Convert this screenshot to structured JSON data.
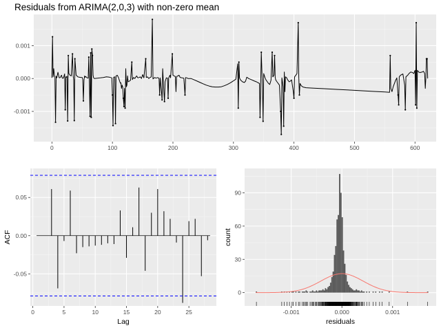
{
  "chart_data": [
    {
      "type": "line",
      "title": "Residuals from ARIMA(2,0,3) with non-zero mean",
      "xlabel": "",
      "ylabel": "",
      "xlim": [
        -30,
        635
      ],
      "ylim": [
        -0.00192,
        0.00195
      ],
      "x_ticks": [
        0,
        100,
        200,
        300,
        400,
        500,
        600
      ],
      "y_ticks": [
        -0.001,
        0.0,
        0.001
      ],
      "y_tick_labels": [
        "-0.001",
        "0.000",
        "0.001"
      ],
      "grid": true,
      "points": [
        [
          0,
          2e-05
        ],
        [
          1,
          0.00127
        ],
        [
          2,
          5e-05
        ],
        [
          3,
          0.0003
        ],
        [
          4,
          0.0001
        ],
        [
          5,
          5e-05
        ],
        [
          6,
          -0.00133
        ],
        [
          7,
          7e-05
        ],
        [
          8,
          2e-05
        ],
        [
          10,
          0.00019
        ],
        [
          12,
          2e-05
        ],
        [
          14,
          3e-05
        ],
        [
          15,
          8e-05
        ],
        [
          16,
          0.0001
        ],
        [
          17,
          1e-05
        ],
        [
          19,
          1e-05
        ],
        [
          21,
          0.00014
        ],
        [
          22,
          -0.00095
        ],
        [
          23,
          5e-05
        ],
        [
          24,
          4e-05
        ],
        [
          25,
          7e-05
        ],
        [
          26,
          -0.00129
        ],
        [
          27,
          0.0007
        ],
        [
          28,
          0.00015
        ],
        [
          30,
          0.0001
        ],
        [
          32,
          8e-05
        ],
        [
          34,
          0.00075
        ],
        [
          35,
          0.0001
        ],
        [
          36,
          -5e-05
        ],
        [
          37,
          -0.00128
        ],
        [
          38,
          0.0006
        ],
        [
          40,
          0.0001
        ],
        [
          43,
          5e-05
        ],
        [
          45,
          4e-05
        ],
        [
          48,
          3e-05
        ],
        [
          50,
          3e-05
        ],
        [
          51,
          -2e-05
        ],
        [
          52,
          -0.00068
        ],
        [
          53,
          -5e-05
        ],
        [
          54,
          8e-05
        ],
        [
          55,
          4e-05
        ],
        [
          56,
          6e-05
        ],
        [
          58,
          2e-05
        ],
        [
          60,
          1e-05
        ],
        [
          61,
          0.00065
        ],
        [
          62,
          -0.00022
        ],
        [
          63,
          -0.00115
        ],
        [
          64,
          0.00078
        ],
        [
          65,
          -0.00118
        ],
        [
          66,
          0.0009
        ],
        [
          67,
          0.0007
        ],
        [
          68,
          0.0001
        ],
        [
          69,
          2e-05
        ],
        [
          70,
          0.0
        ],
        [
          75,
          1e-05
        ],
        [
          80,
          2e-05
        ],
        [
          85,
          3e-05
        ],
        [
          90,
          5e-05
        ],
        [
          95,
          4e-05
        ],
        [
          99,
          2e-05
        ],
        [
          100,
          -0.0005
        ],
        [
          101,
          -0.00143
        ],
        [
          102,
          4e-05
        ],
        [
          104,
          5e-05
        ],
        [
          105,
          -0.00137
        ],
        [
          106,
          8e-05
        ],
        [
          108,
          0.0001
        ],
        [
          110,
          3e-05
        ],
        [
          113,
          -0.00014
        ],
        [
          114,
          -0.00013
        ],
        [
          115,
          -0.0003
        ],
        [
          116,
          -0.0002
        ],
        [
          117,
          -0.00026
        ],
        [
          118,
          -0.0006
        ],
        [
          119,
          -0.00085
        ],
        [
          120,
          -0.0003
        ],
        [
          121,
          -0.0009
        ],
        [
          122,
          0.0003
        ],
        [
          123,
          -0.00025
        ],
        [
          124,
          -0.0002
        ],
        [
          125,
          8e-05
        ],
        [
          126,
          -0.0001
        ],
        [
          128,
          -8e-05
        ],
        [
          130,
          -5e-05
        ],
        [
          132,
          0.0005
        ],
        [
          133,
          -3e-05
        ],
        [
          135,
          3e-05
        ],
        [
          137,
          0.0
        ],
        [
          140,
          8e-05
        ],
        [
          142,
          2e-05
        ],
        [
          144,
          3e-05
        ],
        [
          146,
          5e-05
        ],
        [
          148,
          0.0
        ],
        [
          150,
          0.00012
        ],
        [
          152,
          2e-05
        ],
        [
          155,
          0.0006
        ],
        [
          156,
          3e-05
        ],
        [
          158,
          5e-05
        ],
        [
          160,
          0.0
        ],
        [
          162,
          3e-05
        ],
        [
          164,
          5e-05
        ],
        [
          166,
          0.0018
        ],
        [
          167,
          -1e-05
        ],
        [
          169,
          2e-05
        ],
        [
          170,
          3e-05
        ],
        [
          172,
          1e-05
        ],
        [
          175,
          3e-05
        ],
        [
          177,
          0.0
        ],
        [
          178,
          -0.0005
        ],
        [
          179,
          2e-05
        ],
        [
          180,
          -0.0002
        ],
        [
          181,
          -0.0004
        ],
        [
          182,
          -0.00065
        ],
        [
          183,
          0.0003
        ],
        [
          185,
          -0.0004
        ],
        [
          186,
          -0.0007
        ],
        [
          187,
          -0.0001
        ],
        [
          189,
          2e-05
        ],
        [
          191,
          1e-05
        ],
        [
          192,
          -0.0006
        ],
        [
          193,
          2e-05
        ],
        [
          195,
          0.0001
        ],
        [
          196,
          2e-05
        ],
        [
          199,
          0.00075
        ],
        [
          200,
          0.0001
        ],
        [
          202,
          8e-05
        ],
        [
          204,
          6e-05
        ],
        [
          205,
          -0.0004
        ],
        [
          206,
          6e-05
        ],
        [
          208,
          8e-05
        ],
        [
          210,
          0.0001
        ],
        [
          212,
          3e-05
        ],
        [
          215,
          2e-05
        ],
        [
          218,
          1e-05
        ],
        [
          220,
          -0.0005
        ],
        [
          221,
          3e-05
        ],
        [
          223,
          2e-05
        ],
        [
          225,
          0.0
        ],
        [
          230,
          0.0
        ],
        [
          235,
          -4e-05
        ],
        [
          240,
          -8e-05
        ],
        [
          245,
          -0.00012
        ],
        [
          250,
          -0.00016
        ],
        [
          255,
          -0.0002
        ],
        [
          260,
          -0.00023
        ],
        [
          265,
          -0.00025
        ],
        [
          270,
          -0.00026
        ],
        [
          275,
          -0.00026
        ],
        [
          280,
          -0.00025
        ],
        [
          285,
          -0.00022
        ],
        [
          290,
          -0.00018
        ],
        [
          295,
          -0.00013
        ],
        [
          300,
          -7e-05
        ],
        [
          304,
          -2e-05
        ],
        [
          307,
          0.00045
        ],
        [
          308,
          -0.0009
        ],
        [
          309,
          0.0005
        ],
        [
          310,
          2e-05
        ],
        [
          312,
          -5e-05
        ],
        [
          315,
          -0.0001
        ],
        [
          318,
          -0.00012
        ],
        [
          320,
          -8e-05
        ],
        [
          322,
          4e-05
        ],
        [
          325,
          0.0
        ],
        [
          330,
          -4e-05
        ],
        [
          335,
          -8e-05
        ],
        [
          338,
          -0.0001
        ],
        [
          340,
          -0.00012
        ],
        [
          343,
          -0.00015
        ],
        [
          344,
          -0.00118
        ],
        [
          345,
          -0.0002
        ],
        [
          346,
          0.0008
        ],
        [
          347,
          0.0002
        ],
        [
          348,
          -0.0003
        ],
        [
          349,
          -0.0013
        ],
        [
          350,
          0.00015
        ],
        [
          352,
          3e-05
        ],
        [
          354,
          -5e-05
        ],
        [
          356,
          -0.0001
        ],
        [
          358,
          -0.00015
        ],
        [
          360,
          -0.00018
        ],
        [
          362,
          -5e-05
        ],
        [
          364,
          0.0008
        ],
        [
          365,
          5e-05
        ],
        [
          367,
          0.0001
        ],
        [
          368,
          0.0007
        ],
        [
          369,
          3e-05
        ],
        [
          370,
          -5e-05
        ],
        [
          372,
          -0.0001
        ],
        [
          374,
          -0.00015
        ],
        [
          376,
          -0.0002
        ],
        [
          378,
          -0.001
        ],
        [
          379,
          -0.0017
        ],
        [
          380,
          2e-05
        ],
        [
          381,
          -0.0001
        ],
        [
          382,
          -0.00025
        ],
        [
          383,
          -0.00145
        ],
        [
          384,
          0.0002
        ],
        [
          385,
          -0.0004
        ],
        [
          386,
          5e-05
        ],
        [
          388,
          2e-05
        ],
        [
          390,
          -5e-05
        ],
        [
          392,
          -0.0001
        ],
        [
          394,
          -8e-05
        ],
        [
          396,
          -4e-05
        ],
        [
          399,
          -0.0004
        ],
        [
          400,
          -0.0006
        ],
        [
          401,
          5e-05
        ],
        [
          403,
          0.0001
        ],
        [
          405,
          0.00015
        ],
        [
          407,
          0.0017
        ],
        [
          408,
          5e-05
        ],
        [
          409,
          -0.0005
        ],
        [
          410,
          -0.00015
        ],
        [
          412,
          -0.00022
        ],
        [
          415,
          -0.00026
        ],
        [
          420,
          -0.00028
        ],
        [
          430,
          -0.00029
        ],
        [
          450,
          -0.00031
        ],
        [
          470,
          -0.00033
        ],
        [
          490,
          -0.00035
        ],
        [
          510,
          -0.00037
        ],
        [
          530,
          -0.00039
        ],
        [
          550,
          -0.00041
        ],
        [
          558,
          -0.00042
        ],
        [
          559,
          0.0007
        ],
        [
          560,
          -0.0003
        ],
        [
          562,
          -0.0004
        ],
        [
          564,
          -0.00025
        ],
        [
          566,
          -0.00015
        ],
        [
          568,
          -5e-05
        ],
        [
          570,
          2e-05
        ],
        [
          572,
          -0.0005
        ],
        [
          573,
          -0.0008
        ],
        [
          574,
          5e-05
        ],
        [
          576,
          0.0001
        ],
        [
          578,
          0.00012
        ],
        [
          580,
          0.00014
        ],
        [
          583,
          -0.0002
        ],
        [
          584,
          -0.00095
        ],
        [
          585,
          5e-05
        ],
        [
          588,
          0.0001
        ],
        [
          590,
          0.00015
        ],
        [
          593,
          0.0002
        ],
        [
          596,
          0.00018
        ],
        [
          598,
          0.00015
        ],
        [
          600,
          0.00025
        ],
        [
          601,
          -0.0008
        ],
        [
          602,
          0.0017
        ],
        [
          603,
          -0.0009
        ],
        [
          604,
          0.00025
        ],
        [
          606,
          0.0002
        ],
        [
          608,
          0.00018
        ],
        [
          610,
          0.00019
        ],
        [
          612,
          0.0002
        ],
        [
          614,
          0.00022
        ],
        [
          616,
          0.00015
        ],
        [
          617,
          -0.0003
        ],
        [
          618,
          5e-05
        ],
        [
          619,
          0.0006
        ],
        [
          620,
          0.0006
        ],
        [
          621,
          0.0
        ]
      ]
    },
    {
      "type": "bar",
      "xlabel": "Lag",
      "ylabel": "ACF",
      "xlim": [
        -0.4,
        29.4
      ],
      "ylim": [
        -0.092,
        0.088
      ],
      "x_ticks": [
        0,
        5,
        10,
        15,
        20,
        25
      ],
      "y_ticks": [
        -0.05,
        0.0,
        0.05
      ],
      "y_tick_labels": [
        "-0.05",
        "0.00",
        "0.05"
      ],
      "lags": [
        1,
        2,
        3,
        4,
        5,
        6,
        7,
        8,
        9,
        10,
        11,
        12,
        13,
        14,
        15,
        16,
        17,
        18,
        19,
        20,
        21,
        22,
        23,
        24,
        25,
        26,
        27,
        28
      ],
      "values": [
        0.0,
        0.0,
        0.061,
        -0.069,
        -0.007,
        0.059,
        -0.023,
        -0.015,
        -0.014,
        -0.013,
        -0.012,
        -0.01,
        -0.011,
        0.033,
        -0.029,
        0.011,
        0.063,
        -0.046,
        0.03,
        0.061,
        0.032,
        0.022,
        -0.009,
        -0.088,
        0.019,
        0.022,
        -0.053,
        -0.006
      ],
      "confidence_bounds": [
        0.079,
        -0.079
      ],
      "grid": true
    },
    {
      "type": "histogram",
      "xlabel": "residuals",
      "ylabel": "count",
      "xlim": [
        -0.00192,
        0.00186
      ],
      "ylim": [
        -12,
        112
      ],
      "x_ticks": [
        -0.001,
        0.0,
        0.001
      ],
      "x_tick_labels": [
        "-0.001",
        "0.000",
        "0.001"
      ],
      "y_ticks": [
        0,
        30,
        60,
        90
      ],
      "bin_width": 2.54e-05,
      "bin_start": -0.0012,
      "counts": [
        1,
        0,
        1,
        0,
        1,
        0,
        1,
        0,
        1,
        1,
        0,
        1,
        0,
        1,
        1,
        0,
        1,
        1,
        0,
        2,
        1,
        0,
        1,
        1,
        2,
        1,
        1,
        2,
        1,
        2,
        2,
        2,
        3,
        2,
        4,
        3,
        5,
        6,
        9,
        14,
        19,
        34,
        42,
        66,
        70,
        107,
        90,
        68,
        38,
        26,
        16,
        10,
        7,
        5,
        4,
        3,
        2,
        2,
        3,
        2,
        2,
        1,
        2,
        1,
        1,
        0,
        1,
        0,
        1,
        0,
        0,
        1,
        0,
        1,
        0,
        0,
        1,
        0,
        1
      ],
      "extra_bars": [
        [
          -0.0017,
          1
        ],
        [
          -0.00075,
          1
        ],
        [
          0.00092,
          1
        ],
        [
          0.00128,
          1
        ],
        [
          0.00168,
          1
        ]
      ],
      "normal_curve": {
        "mean": 1e-06,
        "sd": 0.000418,
        "color": "#F8766D"
      },
      "grid": true
    }
  ]
}
